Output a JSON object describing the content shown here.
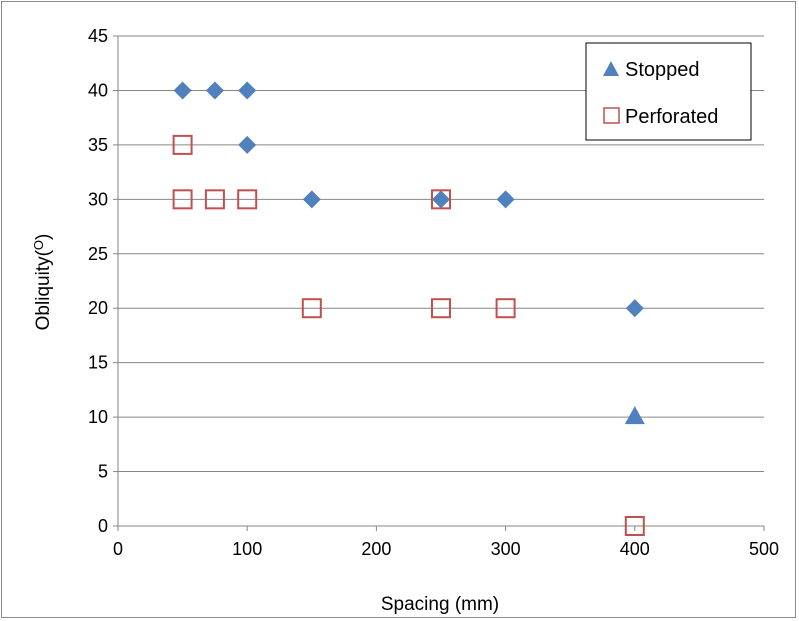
{
  "chart_data": {
    "type": "scatter",
    "xlabel": "Spacing (mm)",
    "ylabel": "Obliquity(",
    "ylabel_sup": "O",
    "ylabel_close": ")",
    "xlim": [
      0,
      500
    ],
    "ylim": [
      0,
      45
    ],
    "x_ticks": [
      0,
      100,
      200,
      300,
      400,
      500
    ],
    "y_ticks": [
      0,
      5,
      10,
      15,
      20,
      25,
      30,
      35,
      40,
      45
    ],
    "grid": {
      "horizontal": true,
      "vertical": false
    },
    "legend_position": "top-right",
    "series": [
      {
        "name": "",
        "marker": "diamond",
        "color": "#4f81bd",
        "points": [
          {
            "x": 50,
            "y": 40
          },
          {
            "x": 75,
            "y": 40
          },
          {
            "x": 100,
            "y": 40
          },
          {
            "x": 100,
            "y": 35
          },
          {
            "x": 150,
            "y": 30
          },
          {
            "x": 250,
            "y": 30
          },
          {
            "x": 300,
            "y": 30
          },
          {
            "x": 400,
            "y": 20
          }
        ]
      },
      {
        "name": "Stopped",
        "marker": "triangle",
        "color": "#4f81bd",
        "points": [
          {
            "x": 400,
            "y": 10
          }
        ]
      },
      {
        "name": "Perforated",
        "marker": "square-open",
        "color": "#c0504d",
        "points": [
          {
            "x": 50,
            "y": 35
          },
          {
            "x": 50,
            "y": 30
          },
          {
            "x": 75,
            "y": 30
          },
          {
            "x": 100,
            "y": 30
          },
          {
            "x": 150,
            "y": 20
          },
          {
            "x": 250,
            "y": 30
          },
          {
            "x": 250,
            "y": 20
          },
          {
            "x": 300,
            "y": 20
          },
          {
            "x": 400,
            "y": 0
          }
        ]
      }
    ]
  }
}
